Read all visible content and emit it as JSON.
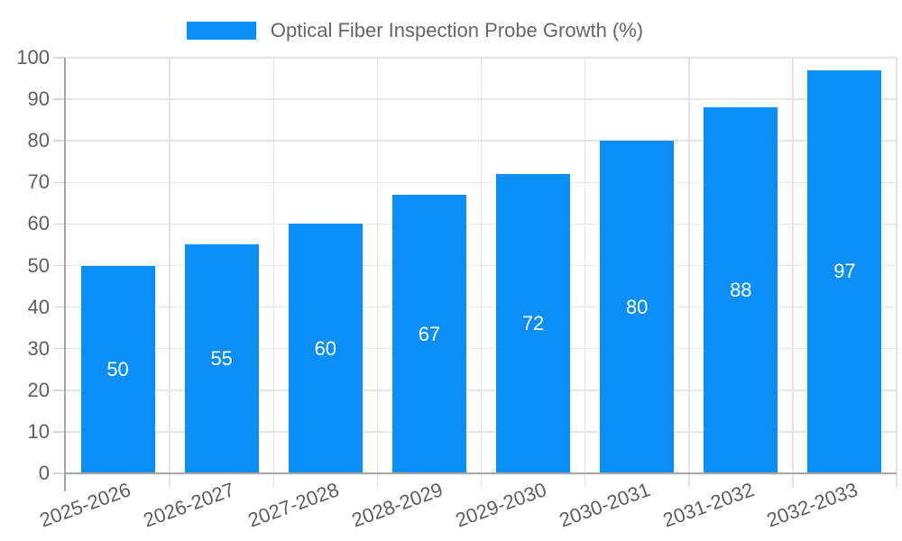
{
  "chart_data": {
    "type": "bar",
    "title": "Optical Fiber Inspection Probe Growth (%)",
    "categories": [
      "2025-2026",
      "2026-2027",
      "2027-2028",
      "2028-2029",
      "2029-2030",
      "2030-2031",
      "2031-2032",
      "2032-2033"
    ],
    "values": [
      50,
      55,
      60,
      67,
      72,
      80,
      88,
      97
    ],
    "xlabel": "",
    "ylabel": "",
    "ylim": [
      0,
      100
    ],
    "yticks": [
      0,
      10,
      20,
      30,
      40,
      50,
      60,
      70,
      80,
      90,
      100
    ],
    "grid": true,
    "legend_position": "top-center",
    "value_labels": "inside-center-white",
    "x_label_rotation_deg": -20,
    "colors": {
      "bar": "#0a8ef8",
      "axis": "#a6a6a6",
      "grid": "#e5e5e5",
      "tick_mark": "#d6d6d6",
      "tick_text": "#5f5f5f",
      "legend_text": "#666666",
      "value_text": "#ffffff",
      "background": "#ffffff"
    }
  }
}
